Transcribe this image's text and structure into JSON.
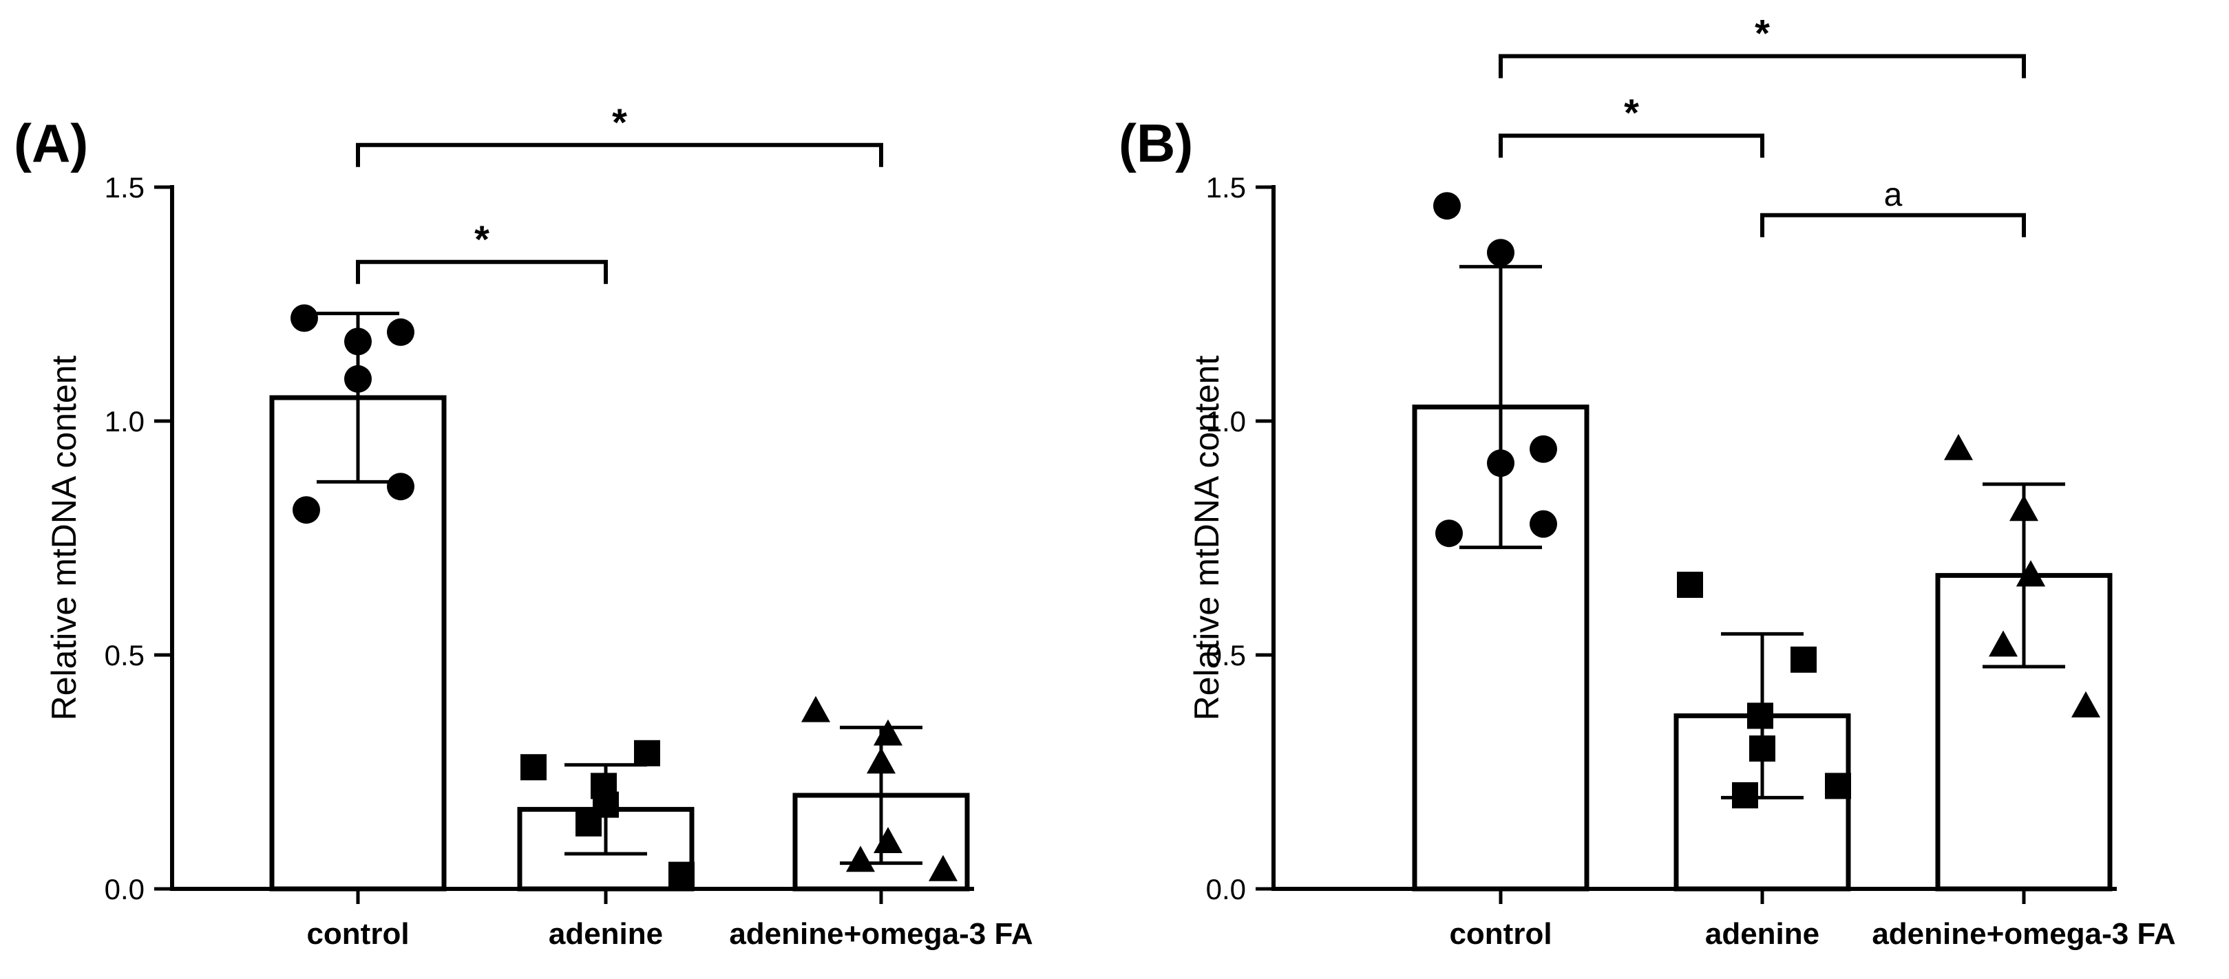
{
  "chart_data": [
    {
      "type": "bar",
      "panel_label": "(A)",
      "ylabel": "Relative mtDNA content",
      "xlabel": "",
      "ylim": [
        0,
        1.5
      ],
      "yticks": [
        0.0,
        0.5,
        1.0,
        1.5
      ],
      "ytick_labels": [
        "0.0",
        "0.5",
        "1.0",
        "1.5"
      ],
      "categories": [
        "control",
        "adenine",
        "adenine+omega-3 FA"
      ],
      "means": [
        1.05,
        0.17,
        0.2
      ],
      "sd": [
        0.18,
        0.095,
        0.145
      ],
      "markers": [
        "circle",
        "square",
        "triangle"
      ],
      "points": [
        [
          1.22,
          1.17,
          1.19,
          1.09,
          0.81,
          0.86
        ],
        [
          0.26,
          0.29,
          0.22,
          0.18,
          0.14,
          0.03
        ],
        [
          0.38,
          0.27,
          0.33,
          0.1,
          0.06,
          0.04
        ]
      ],
      "significance": [
        {
          "from": 0,
          "to": 1,
          "label": "*",
          "y": 1.34
        },
        {
          "from": 0,
          "to": 2,
          "label": "*",
          "y": 1.59
        }
      ]
    },
    {
      "type": "bar",
      "panel_label": "(B)",
      "ylabel": "Relative mtDNA content",
      "xlabel": "",
      "ylim": [
        0,
        1.5
      ],
      "yticks": [
        0.0,
        0.5,
        1.0,
        1.5
      ],
      "ytick_labels": [
        "0.0",
        "0.5",
        "1.0",
        "1.5"
      ],
      "categories": [
        "control",
        "adenine",
        "adenine+omega-3 FA"
      ],
      "means": [
        1.03,
        0.37,
        0.67
      ],
      "sd": [
        0.3,
        0.175,
        0.195
      ],
      "markers": [
        "circle",
        "square",
        "triangle"
      ],
      "points": [
        [
          1.46,
          1.36,
          0.94,
          0.91,
          0.76,
          0.78
        ],
        [
          0.65,
          0.49,
          0.37,
          0.3,
          0.2,
          0.22
        ],
        [
          0.94,
          0.81,
          0.67,
          0.67,
          0.52,
          0.39
        ]
      ],
      "significance": [
        {
          "from": 0,
          "to": 1,
          "label": "*",
          "y": 1.61
        },
        {
          "from": 0,
          "to": 2,
          "label": "*",
          "y": 1.78
        },
        {
          "from": 1,
          "to": 2,
          "label": "a",
          "y": 1.44
        }
      ]
    }
  ]
}
